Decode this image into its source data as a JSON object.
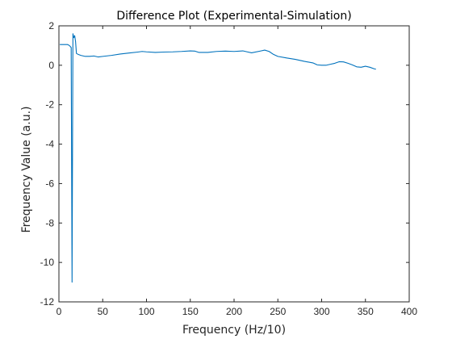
{
  "chart_data": {
    "type": "line",
    "title": "Difference Plot (Experimental-Simulation)",
    "xlabel": "Frequency (Hz/10)",
    "ylabel": "Frequency Value (a.u.)",
    "xlim": [
      0,
      400
    ],
    "ylim": [
      -12,
      2
    ],
    "xticks": [
      0,
      50,
      100,
      150,
      200,
      250,
      300,
      350,
      400
    ],
    "yticks": [
      -12,
      -10,
      -8,
      -6,
      -4,
      -2,
      0,
      2
    ],
    "grid": false,
    "box": true,
    "line_color": "#0072bd",
    "axis_color": "#262626",
    "series": [
      {
        "x": [
          1,
          5,
          10,
          12,
          14,
          15,
          16,
          17,
          18,
          19,
          20,
          22,
          25,
          30,
          35,
          40,
          45,
          50,
          60,
          70,
          80,
          90,
          95,
          100,
          110,
          120,
          130,
          140,
          150,
          155,
          160,
          170,
          180,
          190,
          200,
          210,
          215,
          220,
          230,
          235,
          240,
          245,
          250,
          260,
          270,
          280,
          290,
          295,
          300,
          305,
          310,
          315,
          320,
          325,
          330,
          335,
          340,
          345,
          350,
          355,
          360,
          362
        ],
        "y": [
          1.05,
          1.05,
          1.05,
          1.0,
          0.9,
          -11.0,
          1.6,
          1.4,
          1.5,
          1.2,
          0.6,
          0.55,
          0.5,
          0.45,
          0.45,
          0.47,
          0.42,
          0.45,
          0.5,
          0.57,
          0.62,
          0.67,
          0.7,
          0.68,
          0.65,
          0.67,
          0.68,
          0.7,
          0.73,
          0.72,
          0.65,
          0.65,
          0.7,
          0.72,
          0.7,
          0.73,
          0.68,
          0.63,
          0.72,
          0.77,
          0.7,
          0.55,
          0.45,
          0.37,
          0.3,
          0.2,
          0.12,
          0.02,
          0.0,
          0.0,
          0.05,
          0.1,
          0.18,
          0.17,
          0.1,
          0.02,
          -0.08,
          -0.1,
          -0.05,
          -0.1,
          -0.18,
          -0.2
        ]
      }
    ]
  }
}
